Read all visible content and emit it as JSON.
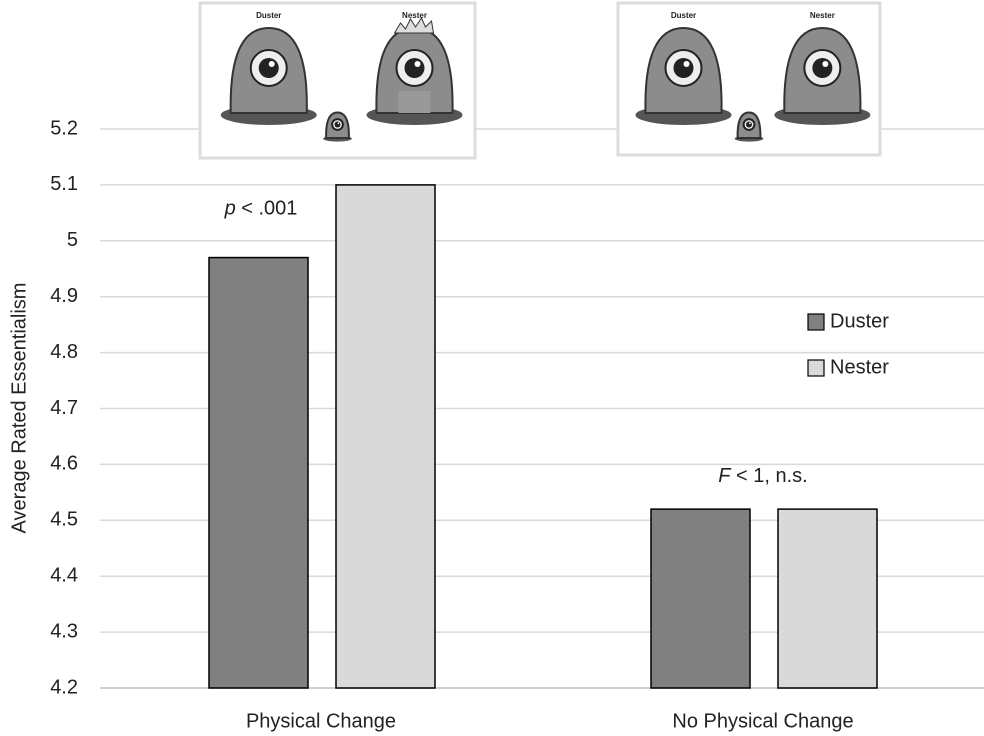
{
  "chart_data": {
    "type": "bar",
    "y_label": "Average Rated Essentialism",
    "categories": [
      "Physical Change",
      "No Physical Change"
    ],
    "series": [
      {
        "name": "Duster",
        "color": "#808080",
        "values": [
          4.97,
          4.52
        ]
      },
      {
        "name": "Nester",
        "color": "#d9d9d9",
        "values": [
          5.1,
          4.52
        ]
      }
    ],
    "ylim": [
      4.2,
      5.2
    ],
    "yticks": [
      4.2,
      4.3,
      4.4,
      4.5,
      4.6,
      4.7,
      4.8,
      4.9,
      5,
      5.1,
      5.2
    ],
    "grid": true,
    "legend": "right",
    "annotations": [
      {
        "italic": "p",
        "text": " < .001"
      },
      {
        "italic": "F",
        "text": " < 1, n.s."
      }
    ],
    "panels": [
      {
        "labels": [
          "Duster",
          "Nester"
        ]
      },
      {
        "labels": [
          "Duster",
          "Nester"
        ]
      }
    ]
  }
}
